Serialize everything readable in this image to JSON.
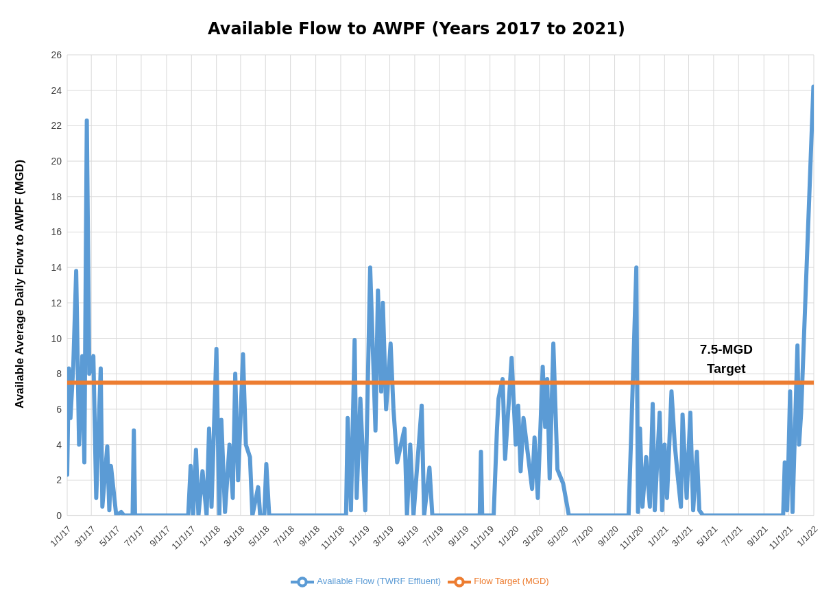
{
  "chart_data": {
    "type": "line",
    "title": "Available Flow to AWPF (Years 2017 to 2021)",
    "ylabel": "Available Average Daily Flow to AWPF (MGD)",
    "xlim": [
      "2017-01-01",
      "2022-01-01"
    ],
    "xticks": [
      {
        "value": "2017-01-01",
        "label": "1/1/17"
      },
      {
        "value": "2017-03-01",
        "label": "3/1/17"
      },
      {
        "value": "2017-05-01",
        "label": "5/1/17"
      },
      {
        "value": "2017-07-01",
        "label": "7/1/17"
      },
      {
        "value": "2017-09-01",
        "label": "9/1/17"
      },
      {
        "value": "2017-11-01",
        "label": "11/1/17"
      },
      {
        "value": "2018-01-01",
        "label": "1/1/18"
      },
      {
        "value": "2018-03-01",
        "label": "3/1/18"
      },
      {
        "value": "2018-05-01",
        "label": "5/1/18"
      },
      {
        "value": "2018-07-01",
        "label": "7/1/18"
      },
      {
        "value": "2018-09-01",
        "label": "9/1/18"
      },
      {
        "value": "2018-11-01",
        "label": "11/1/18"
      },
      {
        "value": "2019-01-01",
        "label": "1/1/19"
      },
      {
        "value": "2019-03-01",
        "label": "3/1/19"
      },
      {
        "value": "2019-05-01",
        "label": "5/1/19"
      },
      {
        "value": "2019-07-01",
        "label": "7/1/19"
      },
      {
        "value": "2019-09-01",
        "label": "9/1/19"
      },
      {
        "value": "2019-11-01",
        "label": "11/1/19"
      },
      {
        "value": "2020-01-01",
        "label": "1/1/20"
      },
      {
        "value": "2020-03-01",
        "label": "3/1/20"
      },
      {
        "value": "2020-05-01",
        "label": "5/1/20"
      },
      {
        "value": "2020-07-01",
        "label": "7/1/20"
      },
      {
        "value": "2020-09-01",
        "label": "9/1/20"
      },
      {
        "value": "2020-11-01",
        "label": "11/1/20"
      },
      {
        "value": "2021-01-01",
        "label": "1/1/21"
      },
      {
        "value": "2021-03-01",
        "label": "3/1/21"
      },
      {
        "value": "2021-05-01",
        "label": "5/1/21"
      },
      {
        "value": "2021-07-01",
        "label": "7/1/21"
      },
      {
        "value": "2021-09-01",
        "label": "9/1/21"
      },
      {
        "value": "2021-11-01",
        "label": "11/1/21"
      },
      {
        "value": "2022-01-01",
        "label": "1/1/22"
      }
    ],
    "ylim": [
      0,
      26
    ],
    "yticks": [
      0,
      2,
      4,
      6,
      8,
      10,
      12,
      14,
      16,
      18,
      20,
      22,
      24,
      26
    ],
    "grid": true,
    "legend": "bottom",
    "marker": "none",
    "line_style": "solid",
    "annotations": [
      {
        "text": "7.5-MGD Target",
        "x": "2021-06-01",
        "y": 7.5
      }
    ],
    "series": [
      {
        "name": "Flow Target (MGD)",
        "color": "#ed7d31",
        "x": [
          "2017-01-01",
          "2022-01-01"
        ],
        "values": [
          7.5,
          7.5
        ]
      },
      {
        "name": "Available Flow (TWRF Effluent)",
        "color": "#5b9bd5",
        "x": [
          "2017-01-01",
          "2017-01-05",
          "2017-01-09",
          "2017-01-16",
          "2017-01-23",
          "2017-01-30",
          "2017-02-07",
          "2017-02-12",
          "2017-02-18",
          "2017-02-24",
          "2017-03-06",
          "2017-03-13",
          "2017-03-24",
          "2017-03-28",
          "2017-04-09",
          "2017-04-14",
          "2017-04-18",
          "2017-05-01",
          "2017-05-13",
          "2017-05-20",
          "2017-06-10",
          "2017-06-13",
          "2017-06-16",
          "2017-10-24",
          "2017-10-30",
          "2017-11-05",
          "2017-11-12",
          "2017-11-18",
          "2017-11-28",
          "2017-12-08",
          "2017-12-14",
          "2017-12-20",
          "2018-01-01",
          "2018-01-08",
          "2018-01-13",
          "2018-01-22",
          "2018-02-02",
          "2018-02-10",
          "2018-02-16",
          "2018-02-23",
          "2018-03-07",
          "2018-03-14",
          "2018-03-24",
          "2018-03-30",
          "2018-04-13",
          "2018-04-18",
          "2018-04-28",
          "2018-05-03",
          "2018-05-10",
          "2018-11-14",
          "2018-11-18",
          "2018-11-26",
          "2018-12-05",
          "2018-12-10",
          "2018-12-19",
          "2018-12-31",
          "2019-01-12",
          "2019-01-25",
          "2019-01-31",
          "2019-02-08",
          "2019-02-12",
          "2019-02-20",
          "2019-03-03",
          "2019-03-10",
          "2019-03-19",
          "2019-04-06",
          "2019-04-12",
          "2019-04-20",
          "2019-04-28",
          "2019-05-18",
          "2019-05-24",
          "2019-06-06",
          "2019-06-13",
          "2019-10-07",
          "2019-10-10",
          "2019-10-13",
          "2019-11-10",
          "2019-11-18",
          "2019-11-22",
          "2019-12-02",
          "2019-12-08",
          "2019-12-24",
          "2020-01-03",
          "2020-01-09",
          "2020-01-15",
          "2020-01-22",
          "2020-02-12",
          "2020-02-18",
          "2020-02-26",
          "2020-03-09",
          "2020-03-15",
          "2020-03-20",
          "2020-03-26",
          "2020-04-04",
          "2020-04-14",
          "2020-04-28",
          "2020-05-12",
          "2020-10-05",
          "2020-10-12",
          "2020-10-24",
          "2020-10-28",
          "2020-11-02",
          "2020-11-08",
          "2020-11-17",
          "2020-11-26",
          "2020-12-03",
          "2020-12-08",
          "2020-12-20",
          "2020-12-26",
          "2021-01-01",
          "2021-01-07",
          "2021-01-18",
          "2021-01-26",
          "2021-02-01",
          "2021-02-10",
          "2021-02-14",
          "2021-02-24",
          "2021-03-05",
          "2021-03-12",
          "2021-03-21",
          "2021-03-27",
          "2021-04-05",
          "2021-10-18",
          "2021-10-22",
          "2021-10-28",
          "2021-11-04",
          "2021-11-10",
          "2021-11-22",
          "2021-11-26",
          "2021-12-01",
          "2021-12-31"
        ],
        "values": [
          2.3,
          8.3,
          5.5,
          8.5,
          13.8,
          4,
          9,
          3,
          22.3,
          8,
          9,
          1,
          8.3,
          0.5,
          3.9,
          0.3,
          2.8,
          0,
          0.2,
          0,
          0,
          4.8,
          0,
          0,
          2.8,
          0,
          3.7,
          0,
          2.5,
          0,
          4.9,
          0.5,
          9.4,
          0,
          5.4,
          0.2,
          4,
          1,
          8,
          2,
          9.1,
          4,
          3.3,
          0,
          1.6,
          0,
          0,
          2.9,
          0,
          0,
          5.5,
          0.3,
          9.9,
          1,
          6.6,
          0.3,
          14,
          4.8,
          12.7,
          7,
          12,
          6,
          9.7,
          6,
          3,
          4.9,
          0,
          4,
          0,
          6.2,
          0,
          2.7,
          0,
          0,
          3.6,
          0,
          0,
          4.8,
          6.6,
          7.7,
          3.2,
          8.9,
          4,
          6.2,
          2.5,
          5.5,
          1.5,
          4.4,
          1,
          8.4,
          5,
          7.7,
          2.1,
          9.7,
          2.6,
          1.8,
          0,
          0,
          5,
          14,
          0.2,
          4.9,
          0.5,
          3.3,
          0.5,
          6.3,
          0.3,
          5.8,
          0.3,
          4,
          1,
          7,
          4,
          2.5,
          0.5,
          5.7,
          1,
          5.8,
          0.3,
          3.6,
          0.3,
          0,
          0,
          3,
          0.3,
          7,
          0.2,
          9.6,
          4,
          5.8,
          24.2
        ]
      }
    ]
  }
}
